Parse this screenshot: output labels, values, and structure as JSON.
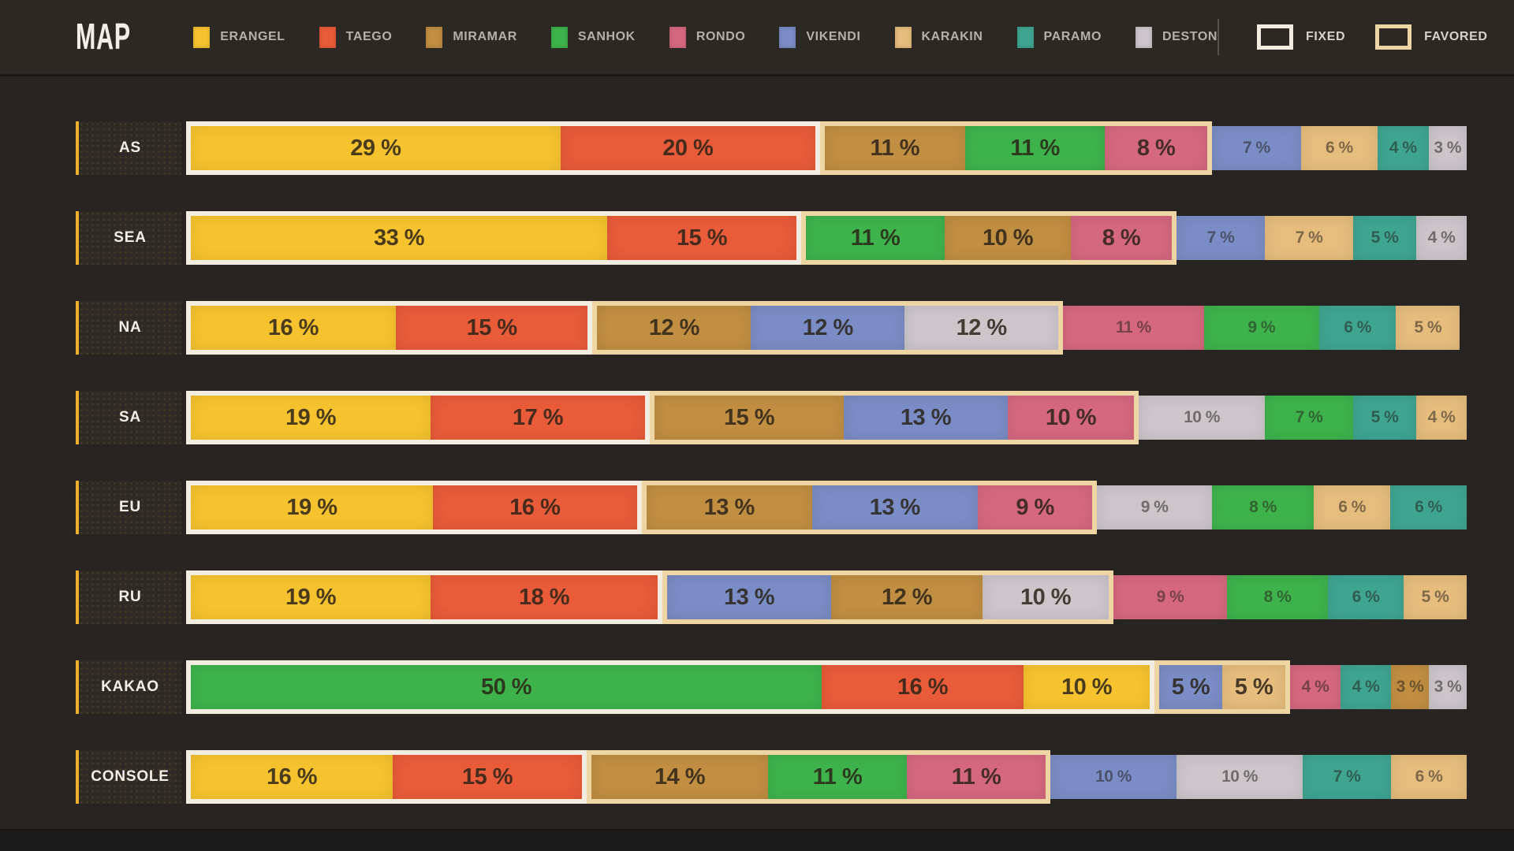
{
  "header": {
    "title": "MAP",
    "legend": [
      {
        "id": "erangel",
        "label": "ERANGEL"
      },
      {
        "id": "taego",
        "label": "TAEGO"
      },
      {
        "id": "miramar",
        "label": "MIRAMAR"
      },
      {
        "id": "sanhok",
        "label": "SANHOK"
      },
      {
        "id": "rondo",
        "label": "RONDO"
      },
      {
        "id": "vikendi",
        "label": "VIKENDI"
      },
      {
        "id": "karakin",
        "label": "KARAKIN"
      },
      {
        "id": "paramo",
        "label": "PARAMO"
      },
      {
        "id": "deston",
        "label": "DESTON"
      }
    ],
    "markers": [
      {
        "id": "fixed",
        "label": "FIXED",
        "color": "#f2ece1"
      },
      {
        "id": "favored",
        "label": "FAVORED",
        "color": "#edd6a4"
      }
    ]
  },
  "chart_data": {
    "type": "bar",
    "orientation": "horizontal",
    "stacked": true,
    "unit": "%",
    "xlim": [
      0,
      100
    ],
    "map_colors": {
      "ERANGEL": "#f6c32f",
      "TAEGO": "#e95b39",
      "MIRAMAR": "#c18e42",
      "SANHOK": "#3eb34c",
      "RONDO": "#d5687f",
      "VIKENDI": "#7b8dc6",
      "KARAKIN": "#e7bd7e",
      "PARAMO": "#3fa591",
      "DESTON": "#ccc6cb"
    },
    "rows": [
      {
        "region": "AS",
        "groups": [
          {
            "style": "fixed",
            "segments": [
              {
                "map": "ERANGEL",
                "value": 29
              },
              {
                "map": "TAEGO",
                "value": 20
              }
            ]
          },
          {
            "style": "favored",
            "segments": [
              {
                "map": "MIRAMAR",
                "value": 11
              },
              {
                "map": "SANHOK",
                "value": 11
              },
              {
                "map": "RONDO",
                "value": 8
              }
            ]
          },
          {
            "style": "none",
            "segments": [
              {
                "map": "VIKENDI",
                "value": 7
              },
              {
                "map": "KARAKIN",
                "value": 6
              },
              {
                "map": "PARAMO",
                "value": 4
              },
              {
                "map": "DESTON",
                "value": 3
              }
            ]
          }
        ]
      },
      {
        "region": "SEA",
        "groups": [
          {
            "style": "fixed",
            "segments": [
              {
                "map": "ERANGEL",
                "value": 33
              },
              {
                "map": "TAEGO",
                "value": 15
              }
            ]
          },
          {
            "style": "favored",
            "segments": [
              {
                "map": "SANHOK",
                "value": 11
              },
              {
                "map": "MIRAMAR",
                "value": 10
              },
              {
                "map": "RONDO",
                "value": 8
              }
            ]
          },
          {
            "style": "none",
            "segments": [
              {
                "map": "VIKENDI",
                "value": 7
              },
              {
                "map": "KARAKIN",
                "value": 7
              },
              {
                "map": "PARAMO",
                "value": 5
              },
              {
                "map": "DESTON",
                "value": 4
              }
            ]
          }
        ]
      },
      {
        "region": "NA",
        "groups": [
          {
            "style": "fixed",
            "segments": [
              {
                "map": "ERANGEL",
                "value": 16
              },
              {
                "map": "TAEGO",
                "value": 15
              }
            ]
          },
          {
            "style": "favored",
            "segments": [
              {
                "map": "MIRAMAR",
                "value": 12
              },
              {
                "map": "VIKENDI",
                "value": 12
              },
              {
                "map": "DESTON",
                "value": 12
              }
            ]
          },
          {
            "style": "none",
            "segments": [
              {
                "map": "RONDO",
                "value": 11
              },
              {
                "map": "SANHOK",
                "value": 9
              },
              {
                "map": "PARAMO",
                "value": 6
              },
              {
                "map": "KARAKIN",
                "value": 5
              }
            ]
          }
        ]
      },
      {
        "region": "SA",
        "groups": [
          {
            "style": "fixed",
            "segments": [
              {
                "map": "ERANGEL",
                "value": 19
              },
              {
                "map": "TAEGO",
                "value": 17
              }
            ]
          },
          {
            "style": "favored",
            "segments": [
              {
                "map": "MIRAMAR",
                "value": 15
              },
              {
                "map": "VIKENDI",
                "value": 13
              },
              {
                "map": "RONDO",
                "value": 10
              }
            ]
          },
          {
            "style": "none",
            "segments": [
              {
                "map": "DESTON",
                "value": 10
              },
              {
                "map": "SANHOK",
                "value": 7
              },
              {
                "map": "PARAMO",
                "value": 5
              },
              {
                "map": "KARAKIN",
                "value": 4
              }
            ]
          }
        ]
      },
      {
        "region": "EU",
        "groups": [
          {
            "style": "fixed",
            "segments": [
              {
                "map": "ERANGEL",
                "value": 19
              },
              {
                "map": "TAEGO",
                "value": 16
              }
            ]
          },
          {
            "style": "favored",
            "segments": [
              {
                "map": "MIRAMAR",
                "value": 13
              },
              {
                "map": "VIKENDI",
                "value": 13
              },
              {
                "map": "RONDO",
                "value": 9
              }
            ]
          },
          {
            "style": "none",
            "segments": [
              {
                "map": "DESTON",
                "value": 9
              },
              {
                "map": "SANHOK",
                "value": 8
              },
              {
                "map": "KARAKIN",
                "value": 6
              },
              {
                "map": "PARAMO",
                "value": 6
              }
            ]
          }
        ]
      },
      {
        "region": "RU",
        "groups": [
          {
            "style": "fixed",
            "segments": [
              {
                "map": "ERANGEL",
                "value": 19
              },
              {
                "map": "TAEGO",
                "value": 18
              }
            ]
          },
          {
            "style": "favored",
            "segments": [
              {
                "map": "VIKENDI",
                "value": 13
              },
              {
                "map": "MIRAMAR",
                "value": 12
              },
              {
                "map": "DESTON",
                "value": 10
              }
            ]
          },
          {
            "style": "none",
            "segments": [
              {
                "map": "RONDO",
                "value": 9
              },
              {
                "map": "SANHOK",
                "value": 8
              },
              {
                "map": "PARAMO",
                "value": 6
              },
              {
                "map": "KARAKIN",
                "value": 5
              }
            ]
          }
        ]
      },
      {
        "region": "KAKAO",
        "groups": [
          {
            "style": "fixed",
            "segments": [
              {
                "map": "SANHOK",
                "value": 50
              },
              {
                "map": "TAEGO",
                "value": 16
              },
              {
                "map": "ERANGEL",
                "value": 10
              }
            ]
          },
          {
            "style": "favored",
            "segments": [
              {
                "map": "VIKENDI",
                "value": 5
              },
              {
                "map": "KARAKIN",
                "value": 5
              }
            ]
          },
          {
            "style": "none",
            "segments": [
              {
                "map": "RONDO",
                "value": 4
              },
              {
                "map": "PARAMO",
                "value": 4
              },
              {
                "map": "MIRAMAR",
                "value": 3
              },
              {
                "map": "DESTON",
                "value": 3
              }
            ]
          }
        ]
      },
      {
        "region": "CONSOLE",
        "groups": [
          {
            "style": "fixed",
            "segments": [
              {
                "map": "ERANGEL",
                "value": 16
              },
              {
                "map": "TAEGO",
                "value": 15
              }
            ]
          },
          {
            "style": "favored",
            "segments": [
              {
                "map": "MIRAMAR",
                "value": 14
              },
              {
                "map": "SANHOK",
                "value": 11
              },
              {
                "map": "RONDO",
                "value": 11
              }
            ]
          },
          {
            "style": "none",
            "segments": [
              {
                "map": "VIKENDI",
                "value": 10
              },
              {
                "map": "DESTON",
                "value": 10
              },
              {
                "map": "PARAMO",
                "value": 7
              },
              {
                "map": "KARAKIN",
                "value": 6
              }
            ]
          }
        ]
      }
    ]
  }
}
